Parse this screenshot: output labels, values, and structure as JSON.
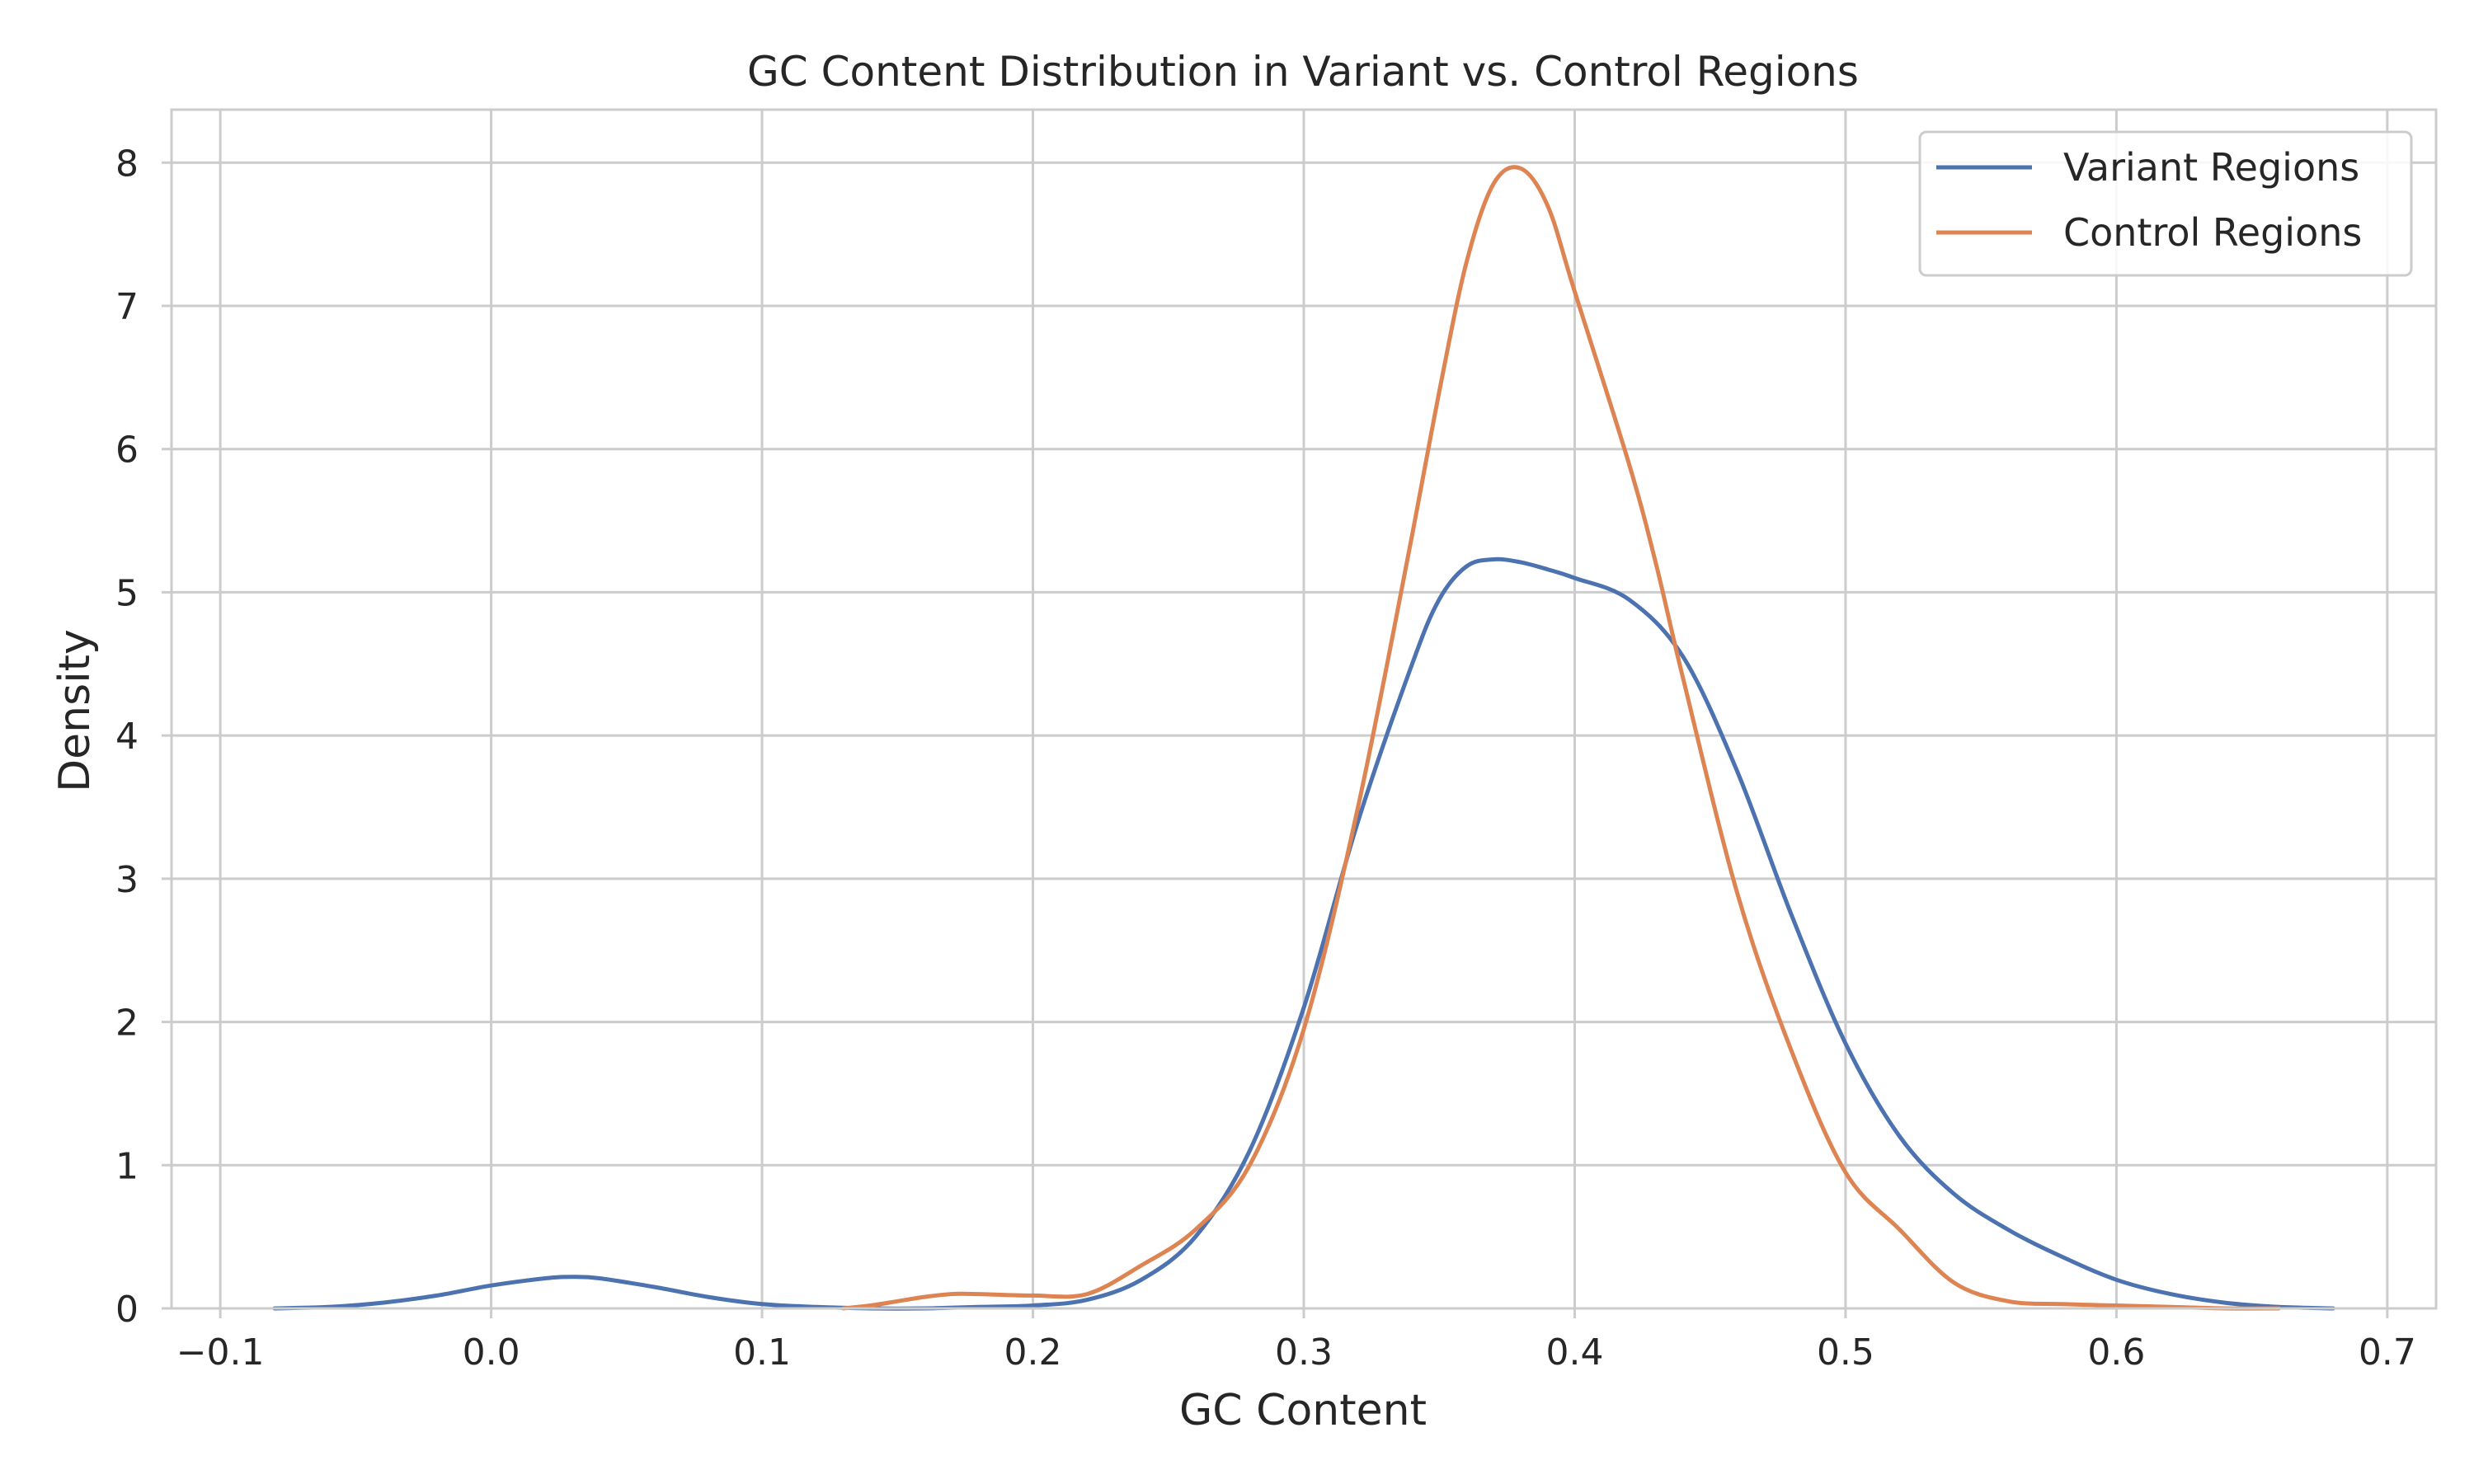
{
  "chart_data": {
    "type": "line",
    "title": "GC Content Distribution in Variant vs. Control Regions",
    "xlabel": "GC Content",
    "ylabel": "Density",
    "xlim": [
      -0.118,
      0.718
    ],
    "ylim": [
      0,
      8.37
    ],
    "xticks": [
      -0.1,
      0.0,
      0.1,
      0.2,
      0.3,
      0.4,
      0.5,
      0.6,
      0.7
    ],
    "xtick_labels": [
      "−0.1",
      "0.0",
      "0.1",
      "0.2",
      "0.3",
      "0.4",
      "0.5",
      "0.6",
      "0.7"
    ],
    "yticks": [
      0,
      1,
      2,
      3,
      4,
      5,
      6,
      7,
      8
    ],
    "ytick_labels": [
      "0",
      "1",
      "2",
      "3",
      "4",
      "5",
      "6",
      "7",
      "8"
    ],
    "grid": true,
    "legend_position": "top-right",
    "series": [
      {
        "name": "Variant Regions",
        "color": "#4c72b0",
        "x": [
          -0.08,
          -0.06,
          -0.04,
          -0.02,
          0.0,
          0.02,
          0.03,
          0.04,
          0.06,
          0.08,
          0.1,
          0.12,
          0.14,
          0.16,
          0.18,
          0.2,
          0.22,
          0.24,
          0.26,
          0.28,
          0.3,
          0.32,
          0.34,
          0.35,
          0.36,
          0.37,
          0.38,
          0.39,
          0.4,
          0.42,
          0.44,
          0.46,
          0.48,
          0.5,
          0.52,
          0.54,
          0.56,
          0.58,
          0.6,
          0.62,
          0.64,
          0.66,
          0.68
        ],
        "y": [
          0.0,
          0.01,
          0.04,
          0.09,
          0.16,
          0.21,
          0.22,
          0.21,
          0.15,
          0.08,
          0.03,
          0.01,
          0.0,
          0.0,
          0.01,
          0.02,
          0.06,
          0.2,
          0.5,
          1.1,
          2.1,
          3.4,
          4.5,
          4.95,
          5.18,
          5.23,
          5.21,
          5.16,
          5.1,
          4.95,
          4.55,
          3.75,
          2.75,
          1.85,
          1.2,
          0.8,
          0.55,
          0.36,
          0.2,
          0.1,
          0.04,
          0.01,
          0.0
        ]
      },
      {
        "name": "Control Regions",
        "color": "#dd8452",
        "x": [
          0.13,
          0.14,
          0.15,
          0.16,
          0.17,
          0.18,
          0.2,
          0.22,
          0.24,
          0.26,
          0.28,
          0.3,
          0.32,
          0.34,
          0.35,
          0.36,
          0.37,
          0.38,
          0.39,
          0.4,
          0.42,
          0.43,
          0.44,
          0.46,
          0.48,
          0.5,
          0.52,
          0.54,
          0.56,
          0.58,
          0.6,
          0.62,
          0.64,
          0.66
        ],
        "y": [
          0.0,
          0.02,
          0.05,
          0.08,
          0.1,
          0.1,
          0.09,
          0.1,
          0.3,
          0.55,
          1.0,
          1.95,
          3.5,
          5.4,
          6.4,
          7.3,
          7.85,
          7.96,
          7.7,
          7.1,
          5.9,
          5.2,
          4.4,
          2.9,
          1.8,
          0.95,
          0.55,
          0.18,
          0.05,
          0.03,
          0.02,
          0.01,
          0.0,
          0.0
        ]
      }
    ]
  }
}
